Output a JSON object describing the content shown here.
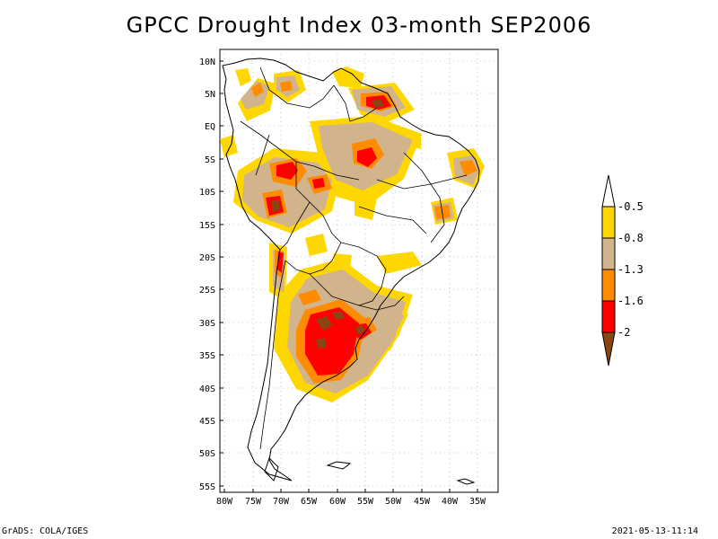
{
  "title": "GPCC Drought Index 03-month SEP2006",
  "footer": {
    "left": "GrADS: COLA/IGES",
    "right": "2021-05-13-11:14"
  },
  "axes": {
    "lat_ticks": [
      "10N",
      "5N",
      "EQ",
      "5S",
      "10S",
      "15S",
      "20S",
      "25S",
      "30S",
      "35S",
      "40S",
      "45S",
      "50S",
      "55S"
    ],
    "lon_ticks": [
      "80W",
      "75W",
      "70W",
      "65W",
      "60W",
      "55W",
      "50W",
      "45W",
      "40W",
      "35W"
    ]
  },
  "legend": {
    "labels": [
      "-0.5",
      "-0.8",
      "-1.3",
      "-1.6",
      "-2"
    ],
    "colors": {
      "c1": "#ffd700",
      "c2": "#d2b48c",
      "c3": "#ff8c00",
      "c4": "#ff0000",
      "c5": "#8b4513",
      "top": "#ffffff"
    }
  },
  "colors": {
    "grid": "#999999",
    "coast": "#000000"
  }
}
